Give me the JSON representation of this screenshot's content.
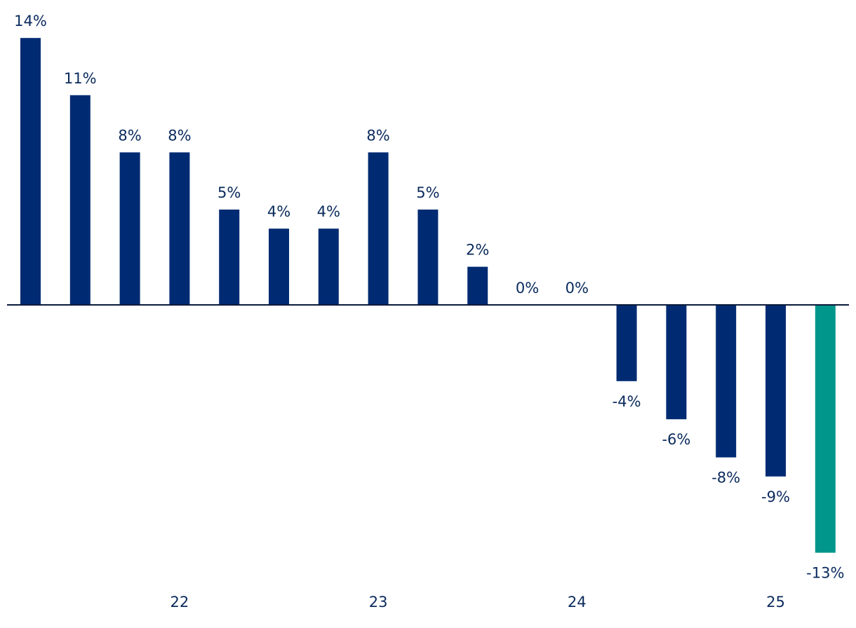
{
  "chart_data": {
    "type": "bar",
    "title": "",
    "xlabel": "",
    "ylabel": "",
    "unit": "%",
    "ylim": [
      -14,
      14
    ],
    "grid": false,
    "legend": "none",
    "colors": {
      "bar": "#002b73",
      "highlight": "#00968c",
      "label": "#0a2a5c",
      "axis": "#0a1a3a"
    },
    "x_tick_labels": [
      {
        "label": "22",
        "at_bar_index": 3
      },
      {
        "label": "23",
        "at_bar_index": 7
      },
      {
        "label": "24",
        "at_bar_index": 11
      },
      {
        "label": "25",
        "at_bar_index": 15
      }
    ],
    "series": [
      {
        "values": [
          14,
          11,
          8,
          8,
          5,
          4,
          4,
          8,
          5,
          2,
          0,
          0,
          -4,
          -6,
          -8,
          -9,
          -13
        ],
        "data_labels": [
          "14%",
          "11%",
          "8%",
          "8%",
          "5%",
          "4%",
          "4%",
          "8%",
          "5%",
          "2%",
          "0%",
          "0%",
          "-4%",
          "-6%",
          "-8%",
          "-9%",
          "-13%"
        ],
        "highlight_index": 16
      }
    ]
  }
}
